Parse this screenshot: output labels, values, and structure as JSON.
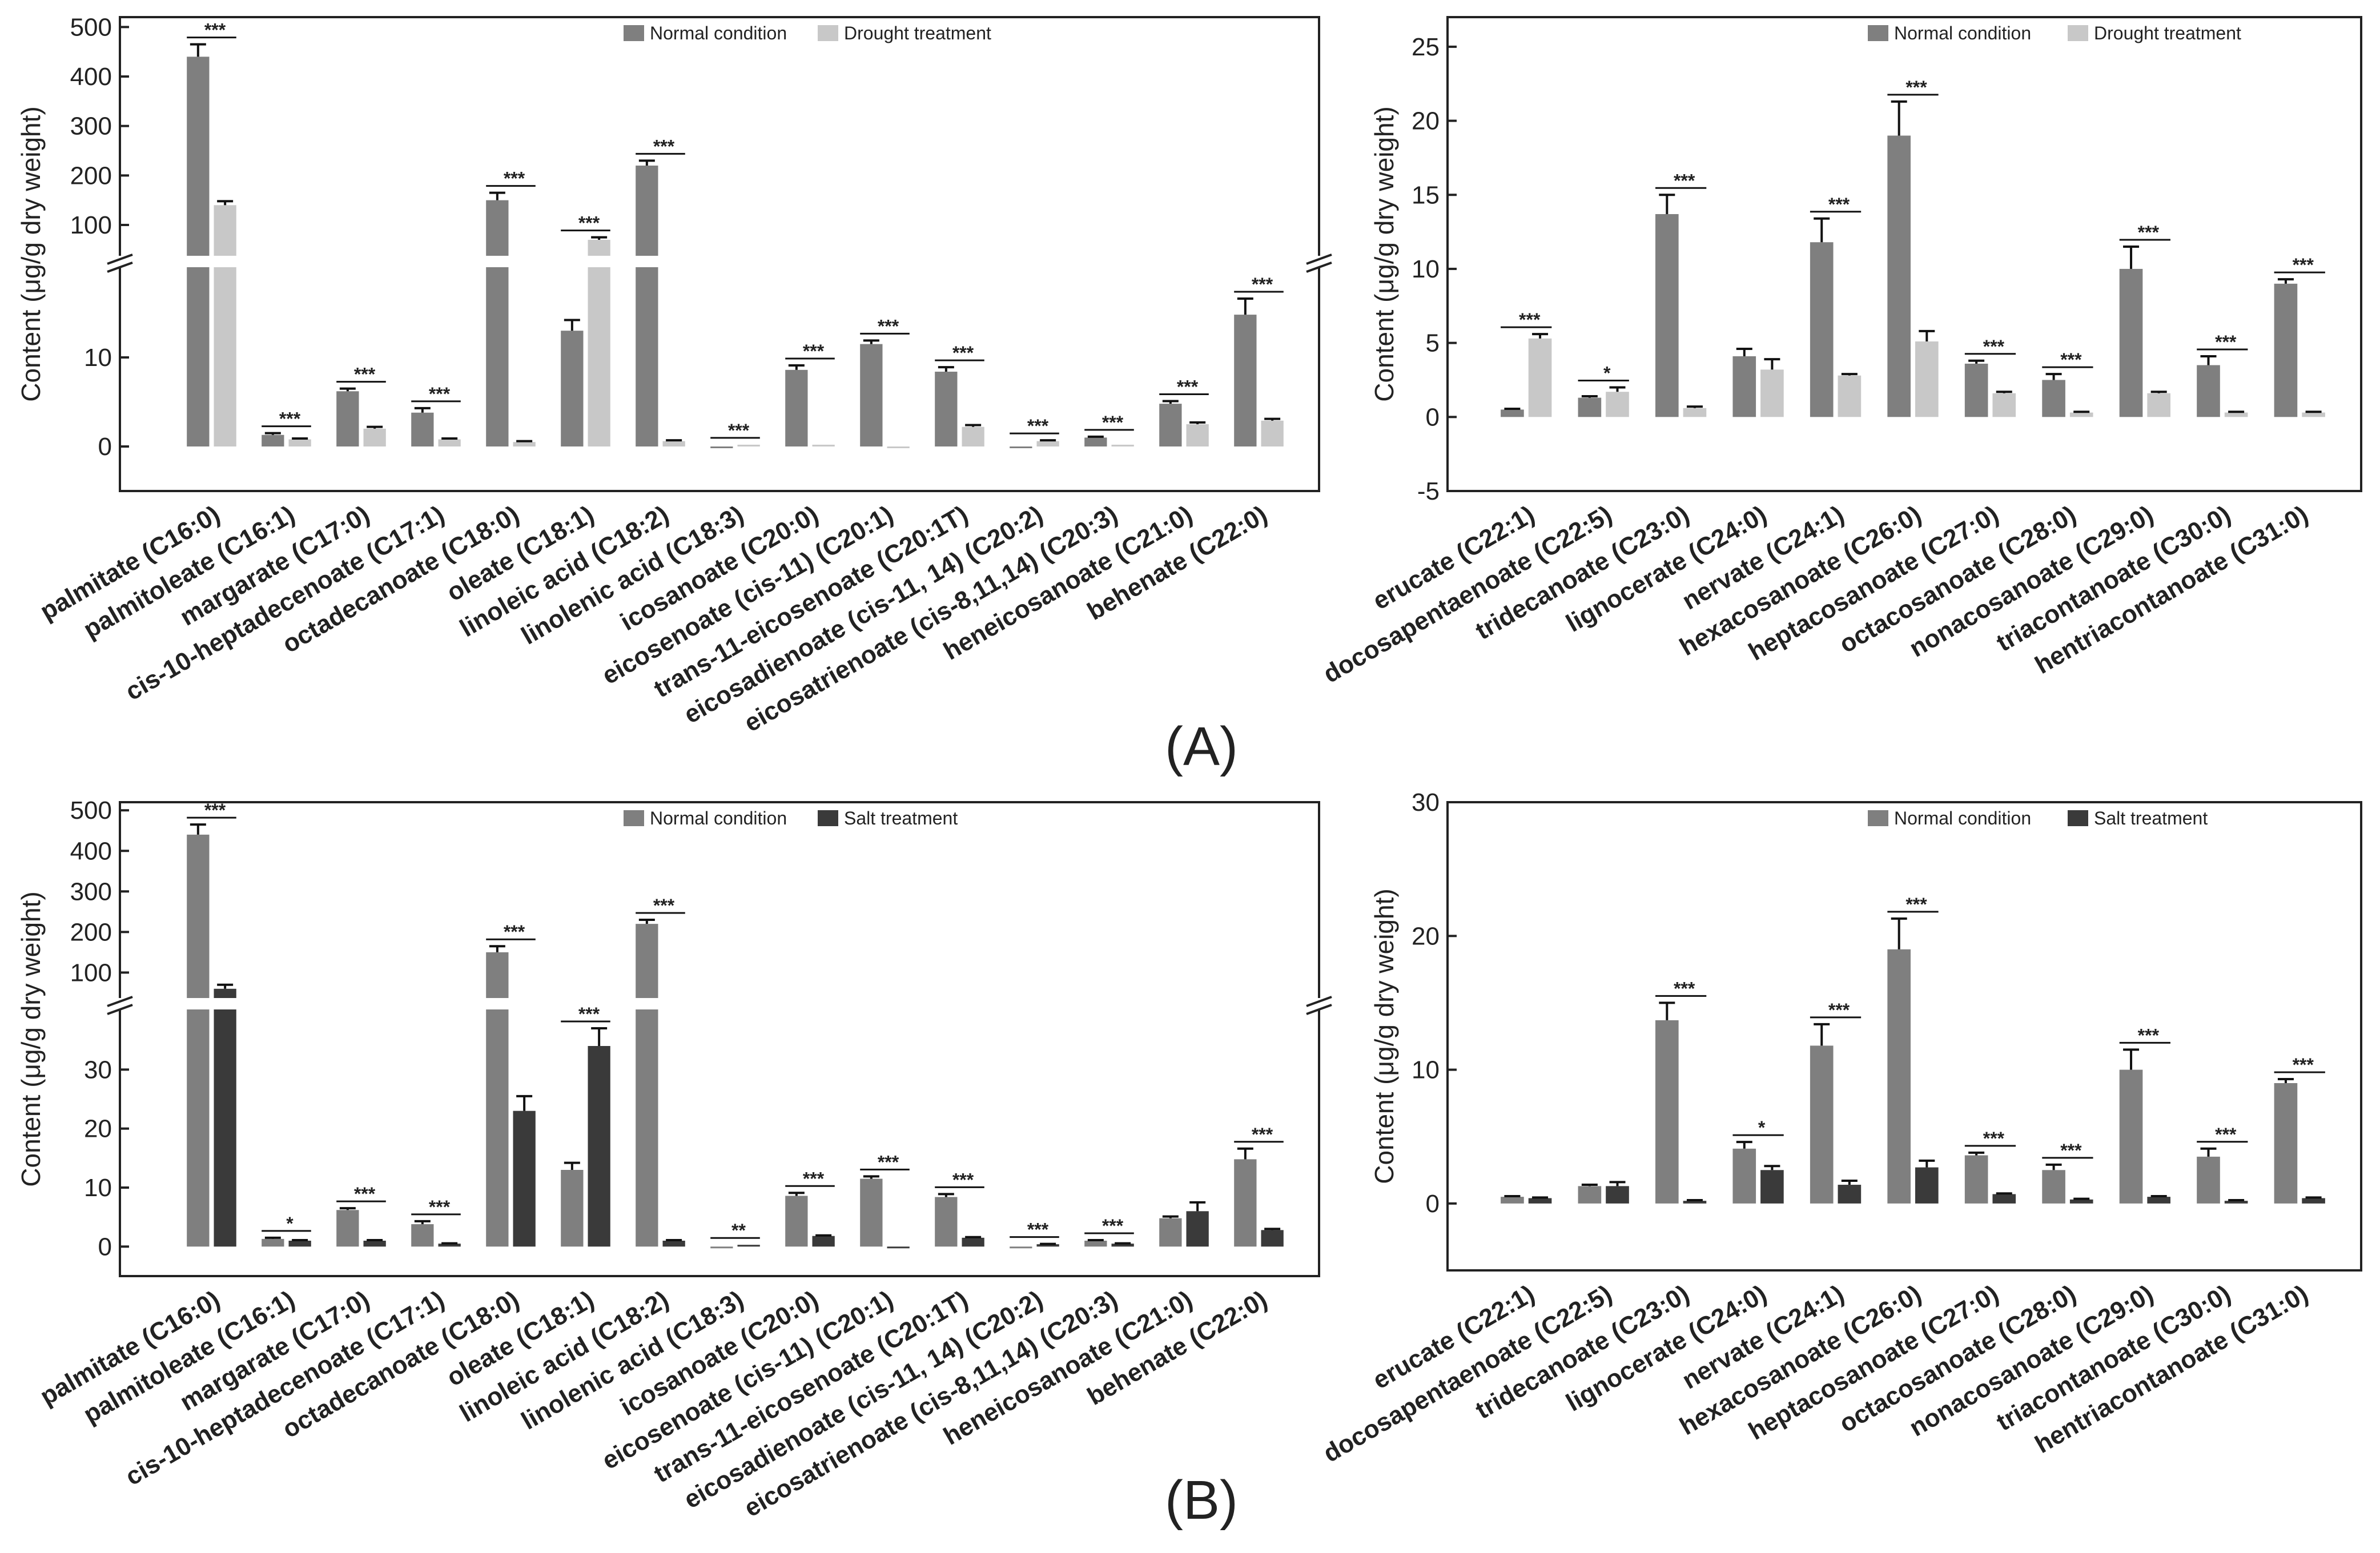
{
  "chart_data": [
    {
      "type": "bar",
      "id": "A-left",
      "ylabel": "Content (μg/g dry weight)",
      "legend_position": "top-center",
      "axis_break": true,
      "y_ticks_lower": [
        0,
        10
      ],
      "y_ticks_upper": [
        100,
        200,
        300,
        400,
        500
      ],
      "ylim_lower": [
        -5,
        20
      ],
      "ylim_upper": [
        40,
        520
      ],
      "categories": [
        "palmitate (C16:0)",
        "palmitoleate (C16:1)",
        "margarate (C17:0)",
        "cis-10-heptadecenoate (C17:1)",
        "octadecanoate (C18:0)",
        "oleate (C18:1)",
        "linoleic acid (C18:2)",
        "linolenic acid (C18:3)",
        "icosanoate (C20:0)",
        "eicosenoate (cis-11) (C20:1)",
        "trans-11-eicosenoate (C20:1T)",
        "eicosadienoate (cis-11, 14) (C20:2)",
        "eicosatrienoate (cis-8,11,14) (C20:3)",
        "heneicosanoate (C21:0)",
        "behenate (C22:0)"
      ],
      "series": [
        {
          "name": "Normal condition",
          "color": "#7f7f7f",
          "values": [
            440,
            1.3,
            6.2,
            3.8,
            150,
            13,
            220,
            0,
            8.6,
            11.5,
            8.4,
            0,
            1.0,
            4.8,
            14.8
          ],
          "errors": [
            25,
            0.2,
            0.3,
            0.5,
            15,
            1.2,
            10,
            0,
            0.5,
            0.4,
            0.5,
            0,
            0.1,
            0.3,
            1.8
          ]
        },
        {
          "name": "Drought treatment",
          "color": "#c8c8c8",
          "values": [
            140,
            0.8,
            2.0,
            0.8,
            0.5,
            70,
            0.6,
            0.2,
            0.2,
            0,
            2.2,
            0.6,
            0.2,
            2.5,
            2.9
          ],
          "errors": [
            8,
            0.1,
            0.2,
            0.1,
            0.1,
            5,
            0.1,
            0,
            0,
            0,
            0.2,
            0.1,
            0,
            0.2,
            0.2
          ]
        }
      ],
      "significance": [
        "***",
        "***",
        "***",
        "***",
        "***",
        "***",
        "***",
        "***",
        "***",
        "***",
        "***",
        "***",
        "***",
        "***",
        "***"
      ]
    },
    {
      "type": "bar",
      "id": "A-right",
      "ylabel": "Content (μg/g dry weight)",
      "legend_position": "top-center",
      "y_ticks": [
        -5,
        0,
        5,
        10,
        15,
        20,
        25
      ],
      "ylim": [
        -5,
        27
      ],
      "categories": [
        "erucate (C22:1)",
        "docosapentaenoate (C22:5)",
        "tridecanoate (C23:0)",
        "lignocerate (C24:0)",
        "nervate (C24:1)",
        "hexacosanoate (C26:0)",
        "heptacosanoate (C27:0)",
        "octacosanoate (C28:0)",
        "nonacosanoate (C29:0)",
        "triacontanoate (C30:0)",
        "hentriacontanoate (C31:0)"
      ],
      "series": [
        {
          "name": "Normal condition",
          "color": "#7f7f7f",
          "values": [
            0.5,
            1.3,
            13.7,
            4.1,
            11.8,
            19.0,
            3.6,
            2.5,
            10.0,
            3.5,
            9.0
          ],
          "errors": [
            0.05,
            0.1,
            1.3,
            0.5,
            1.6,
            2.3,
            0.2,
            0.4,
            1.5,
            0.6,
            0.3
          ]
        },
        {
          "name": "Drought treatment",
          "color": "#c8c8c8",
          "values": [
            5.3,
            1.7,
            0.6,
            3.2,
            2.8,
            5.1,
            1.6,
            0.3,
            1.6,
            0.3,
            0.3
          ],
          "errors": [
            0.3,
            0.3,
            0.1,
            0.7,
            0.1,
            0.7,
            0.1,
            0.05,
            0.1,
            0.05,
            0.05
          ]
        }
      ],
      "significance": [
        "***",
        "*",
        "***",
        "",
        "***",
        "***",
        "***",
        "***",
        "***",
        "***",
        "***"
      ]
    },
    {
      "type": "bar",
      "id": "B-left",
      "ylabel": "Content (μg/g dry weight)",
      "legend_position": "top-center",
      "axis_break": true,
      "y_ticks_lower": [
        0,
        10,
        20,
        30
      ],
      "y_ticks_upper": [
        100,
        200,
        300,
        400,
        500
      ],
      "ylim_lower": [
        -5,
        40
      ],
      "ylim_upper": [
        40,
        520
      ],
      "categories": [
        "palmitate (C16:0)",
        "palmitoleate (C16:1)",
        "margarate (C17:0)",
        "cis-10-heptadecenoate (C17:1)",
        "octadecanoate (C18:0)",
        "oleate (C18:1)",
        "linoleic acid (C18:2)",
        "linolenic acid (C18:3)",
        "icosanoate (C20:0)",
        "eicosenoate (cis-11) (C20:1)",
        "trans-11-eicosenoate (C20:1T)",
        "eicosadienoate (cis-11, 14) (C20:2)",
        "eicosatrienoate (cis-8,11,14) (C20:3)",
        "heneicosanoate (C21:0)",
        "behenate (C22:0)"
      ],
      "series": [
        {
          "name": "Normal condition",
          "color": "#7f7f7f",
          "values": [
            440,
            1.3,
            6.2,
            3.8,
            150,
            13,
            220,
            0,
            8.6,
            11.5,
            8.4,
            0,
            1.0,
            4.8,
            14.8
          ],
          "errors": [
            25,
            0.2,
            0.3,
            0.5,
            15,
            1.2,
            10,
            0,
            0.5,
            0.4,
            0.5,
            0,
            0.1,
            0.3,
            1.8
          ]
        },
        {
          "name": "Salt treatment",
          "color": "#3a3a3a",
          "values": [
            60,
            1.0,
            1.0,
            0.5,
            23,
            34,
            1.0,
            0.3,
            1.8,
            0,
            1.5,
            0.4,
            0.5,
            6.0,
            2.8
          ],
          "errors": [
            10,
            0.1,
            0.1,
            0.05,
            2.5,
            3.0,
            0.1,
            0,
            0.1,
            0,
            0.1,
            0.05,
            0.05,
            1.5,
            0.2
          ]
        }
      ],
      "significance": [
        "***",
        "*",
        "***",
        "***",
        "***",
        "***",
        "***",
        "**",
        "***",
        "***",
        "***",
        "***",
        "***",
        "",
        "***"
      ]
    },
    {
      "type": "bar",
      "id": "B-right",
      "ylabel": "Content (μg/g dry weight)",
      "legend_position": "top-center",
      "y_ticks": [
        0,
        10,
        20,
        30
      ],
      "ylim": [
        -5,
        30
      ],
      "categories": [
        "erucate (C22:1)",
        "docosapentaenoate (C22:5)",
        "tridecanoate (C23:0)",
        "lignocerate (C24:0)",
        "nervate (C24:1)",
        "hexacosanoate (C26:0)",
        "heptacosanoate (C27:0)",
        "octacosanoate (C28:0)",
        "nonacosanoate (C29:0)",
        "triacontanoate (C30:0)",
        "hentriacontanoate (C31:0)"
      ],
      "series": [
        {
          "name": "Normal condition",
          "color": "#7f7f7f",
          "values": [
            0.5,
            1.3,
            13.7,
            4.1,
            11.8,
            19.0,
            3.6,
            2.5,
            10.0,
            3.5,
            9.0
          ],
          "errors": [
            0.05,
            0.1,
            1.3,
            0.5,
            1.6,
            2.3,
            0.2,
            0.4,
            1.5,
            0.6,
            0.3
          ]
        },
        {
          "name": "Salt treatment",
          "color": "#3a3a3a",
          "values": [
            0.4,
            1.3,
            0.2,
            2.5,
            1.4,
            2.7,
            0.7,
            0.3,
            0.5,
            0.2,
            0.4
          ],
          "errors": [
            0.05,
            0.3,
            0.05,
            0.3,
            0.3,
            0.5,
            0.05,
            0.05,
            0.05,
            0.05,
            0.05
          ]
        }
      ],
      "significance": [
        "",
        "",
        "***",
        "*",
        "***",
        "***",
        "***",
        "***",
        "***",
        "***",
        "***"
      ]
    }
  ],
  "panel_labels": [
    "(A)",
    "(B)"
  ]
}
